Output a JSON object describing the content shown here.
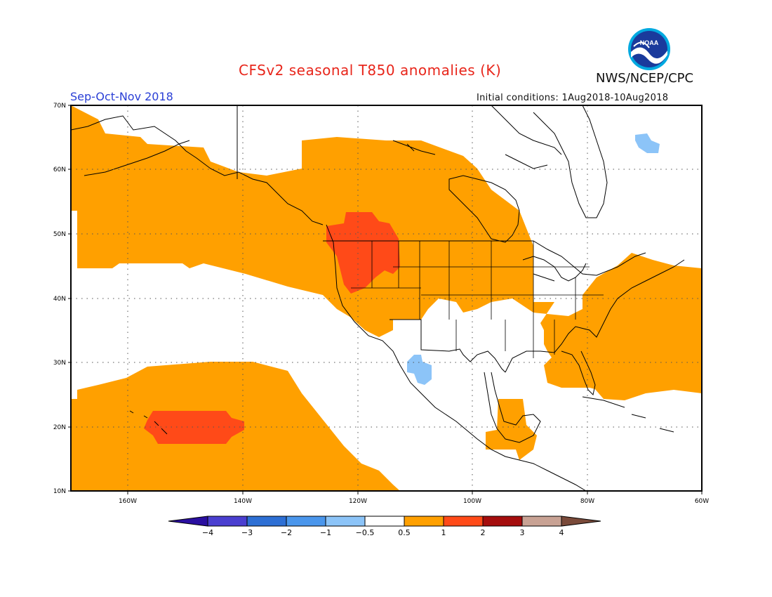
{
  "title": "CFSv2 seasonal T850 anomalies (K)",
  "agency": "NWS/NCEP/CPC",
  "season": "Sep-Oct-Nov 2018",
  "initial_conditions": "Initial conditions: 1Aug2018-10Aug2018",
  "logo_text": "NOAA",
  "lat_labels": [
    "70N",
    "60N",
    "50N",
    "40N",
    "30N",
    "20N",
    "10N"
  ],
  "lon_labels": [
    "160W",
    "140W",
    "120W",
    "100W",
    "80W",
    "60W"
  ],
  "colorbar": {
    "labels": [
      "-4",
      "-3",
      "-2",
      "-1",
      "-0.5",
      "0.5",
      "1",
      "2",
      "3",
      "4"
    ],
    "colors": [
      "#2a0fa0",
      "#4a3fd0",
      "#2d6fd4",
      "#4a96ec",
      "#8cc4f8",
      "#ffffff",
      "#ffa000",
      "#ff4a18",
      "#a50d0d",
      "#c8a294",
      "#7a4a3a"
    ]
  },
  "colors": {
    "warm_1": "#ffa000",
    "warm_2": "#ff4a18",
    "cool_05": "#8cc4f8"
  }
}
